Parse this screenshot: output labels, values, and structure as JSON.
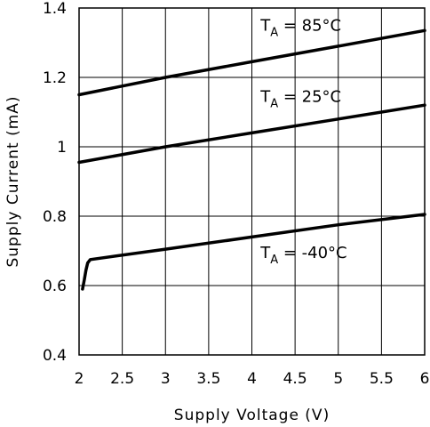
{
  "chart_data": {
    "type": "line",
    "xlabel": "Supply Voltage (V)",
    "ylabel": "Supply Current (mA)",
    "xlim": [
      2,
      6
    ],
    "ylim": [
      0.4,
      1.4
    ],
    "x_ticks": [
      2,
      2.5,
      3,
      3.5,
      4,
      4.5,
      5,
      5.5,
      6
    ],
    "x_tick_labels": [
      "2",
      "2.5",
      "3",
      "3.5",
      "4",
      "4.5",
      "5",
      "5.5",
      "6"
    ],
    "y_ticks": [
      0.4,
      0.6,
      0.8,
      1,
      1.2,
      1.4
    ],
    "y_tick_labels": [
      "0.4",
      "0.6",
      "0.8",
      "1",
      "1.2",
      "1.4"
    ],
    "grid": true,
    "series": [
      {
        "label_prefix": "T",
        "label_sub": "A",
        "label_rest": " = 85°C",
        "x": [
          2,
          3,
          4,
          5,
          6
        ],
        "y": [
          1.15,
          1.2,
          1.245,
          1.29,
          1.335
        ]
      },
      {
        "label_prefix": "T",
        "label_sub": "A",
        "label_rest": " = 25°C",
        "x": [
          2,
          3,
          4,
          5,
          6
        ],
        "y": [
          0.955,
          1.0,
          1.04,
          1.08,
          1.12
        ]
      },
      {
        "label_prefix": "T",
        "label_sub": "A",
        "label_rest": " = -40°C",
        "x": [
          2.04,
          2.06,
          2.08,
          2.1,
          2.13,
          3,
          4,
          5,
          6
        ],
        "y": [
          0.59,
          0.615,
          0.645,
          0.665,
          0.675,
          0.705,
          0.74,
          0.775,
          0.805
        ]
      }
    ],
    "annotations": [
      {
        "series": 0,
        "x": 4.1,
        "y": 1.335
      },
      {
        "series": 1,
        "x": 4.1,
        "y": 1.13
      },
      {
        "series": 2,
        "x": 4.1,
        "y": 0.68
      }
    ]
  }
}
